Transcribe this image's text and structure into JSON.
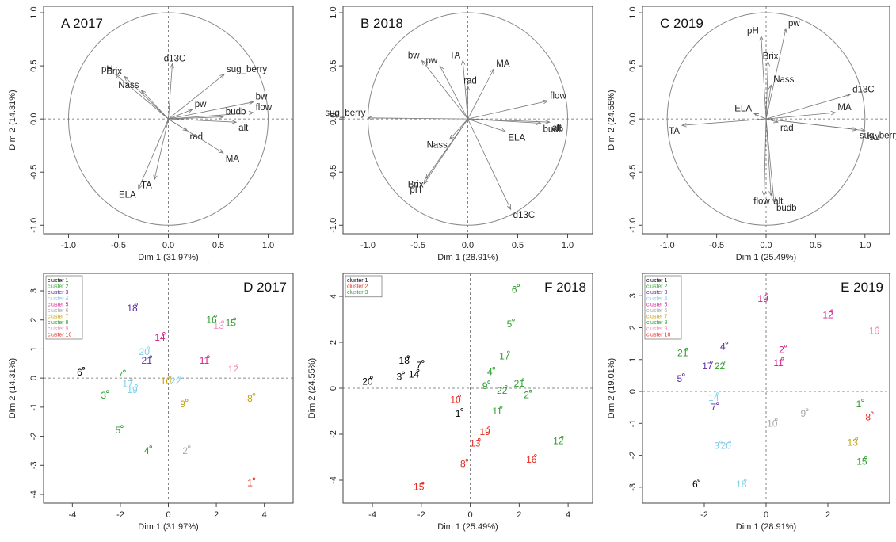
{
  "chart_data": [
    {
      "type": "scatter",
      "subtype": "pca-variable-correlation-circle",
      "title": "A 2017",
      "xlabel": "Dim 1 (31.97%)",
      "ylabel": "Dim 2 (14.31%)",
      "xlim": [
        -1.25,
        1.25
      ],
      "ylim": [
        -1.08,
        1.06
      ],
      "xticks": [
        -1.0,
        -0.5,
        0.0,
        0.5,
        1.0
      ],
      "yticks": [
        -1.0,
        -0.5,
        0.0,
        0.5,
        1.0
      ],
      "xtick_labels": [
        "-1.0",
        "-0.5",
        "0.0",
        "0.5",
        "1.0"
      ],
      "ytick_labels": [
        "-1.0",
        "-0.5",
        "0.0",
        "0.5",
        "1.0"
      ],
      "extra_text": ".",
      "vectors": [
        {
          "label": "pH",
          "x": -0.53,
          "y": 0.42
        },
        {
          "label": "Brix",
          "x": -0.44,
          "y": 0.4
        },
        {
          "label": "Nass",
          "x": -0.27,
          "y": 0.27
        },
        {
          "label": "d13C",
          "x": 0.04,
          "y": 0.52
        },
        {
          "label": "sug_berry",
          "x": 0.56,
          "y": 0.42
        },
        {
          "label": "pw",
          "x": 0.24,
          "y": 0.09
        },
        {
          "label": "bw",
          "x": 0.85,
          "y": 0.16
        },
        {
          "label": "flow",
          "x": 0.85,
          "y": 0.06
        },
        {
          "label": "budb",
          "x": 0.55,
          "y": 0.02
        },
        {
          "label": "alt",
          "x": 0.68,
          "y": -0.03
        },
        {
          "label": "rad",
          "x": 0.19,
          "y": -0.11
        },
        {
          "label": "MA",
          "x": 0.55,
          "y": -0.32
        },
        {
          "label": "TA",
          "x": -0.14,
          "y": -0.57
        },
        {
          "label": "ELA",
          "x": -0.3,
          "y": -0.66
        }
      ]
    },
    {
      "type": "scatter",
      "subtype": "pca-variable-correlation-circle",
      "title": "B 2018",
      "xlabel": "Dim 1 (28.91%)",
      "ylabel": "",
      "xlim": [
        -1.25,
        1.25
      ],
      "ylim": [
        -1.08,
        1.06
      ],
      "xticks": [
        -1.0,
        -0.5,
        0.0,
        0.5,
        1.0
      ],
      "yticks": [
        -1.0,
        -0.5,
        0.0,
        0.5,
        1.0
      ],
      "xtick_labels": [
        "-1.0",
        "-0.5",
        "0.0",
        "0.5",
        "1.0"
      ],
      "ytick_labels": [
        "-1.0",
        "-0.5",
        "0.0",
        "0.5",
        "1.0"
      ],
      "extra_text": "",
      "vectors": [
        {
          "label": "bw",
          "x": -0.46,
          "y": 0.55
        },
        {
          "label": "pw",
          "x": -0.28,
          "y": 0.5
        },
        {
          "label": "TA",
          "x": -0.05,
          "y": 0.55
        },
        {
          "label": "rad",
          "x": 0.0,
          "y": 0.31
        },
        {
          "label": "MA",
          "x": 0.26,
          "y": 0.47
        },
        {
          "label": "flow",
          "x": 0.8,
          "y": 0.17
        },
        {
          "label": "alt",
          "x": 0.82,
          "y": -0.03
        },
        {
          "label": "budb",
          "x": 0.73,
          "y": -0.04
        },
        {
          "label": "ELA",
          "x": 0.38,
          "y": -0.12
        },
        {
          "label": "sug_berry",
          "x": -1.0,
          "y": 0.01
        },
        {
          "label": "Nass",
          "x": -0.18,
          "y": -0.19
        },
        {
          "label": "Brix",
          "x": -0.42,
          "y": -0.56
        },
        {
          "label": "pH",
          "x": -0.44,
          "y": -0.61
        },
        {
          "label": "d13C",
          "x": 0.43,
          "y": -0.85
        }
      ]
    },
    {
      "type": "scatter",
      "subtype": "pca-variable-correlation-circle",
      "title": "C 2019",
      "xlabel": "Dim 1 (25.49%)",
      "ylabel": "Dim 2 (24.55%)",
      "xlim": [
        -1.25,
        1.25
      ],
      "ylim": [
        -1.08,
        1.06
      ],
      "xticks": [
        -1.0,
        -0.5,
        0.0,
        0.5,
        1.0
      ],
      "yticks": [
        -1.0,
        -0.5,
        0.0,
        0.5,
        1.0
      ],
      "xtick_labels": [
        "-1.0",
        "-0.5",
        "0.0",
        "0.5",
        "1.0"
      ],
      "ytick_labels": [
        "-1.0",
        "-0.5",
        "0.0",
        "0.5",
        "1.0"
      ],
      "extra_text": "",
      "vectors": [
        {
          "label": "pH",
          "x": -0.05,
          "y": 0.78
        },
        {
          "label": "pw",
          "x": 0.2,
          "y": 0.85
        },
        {
          "label": "Brix",
          "x": 0.02,
          "y": 0.54
        },
        {
          "label": "Nass",
          "x": 0.05,
          "y": 0.32
        },
        {
          "label": "ELA",
          "x": -0.12,
          "y": 0.05
        },
        {
          "label": "d13C",
          "x": 0.85,
          "y": 0.23
        },
        {
          "label": "MA",
          "x": 0.7,
          "y": 0.06
        },
        {
          "label": "rad",
          "x": 0.12,
          "y": -0.03
        },
        {
          "label": "sug_berry",
          "x": 0.92,
          "y": -0.1
        },
        {
          "label": "bw",
          "x": 1.0,
          "y": -0.11
        },
        {
          "label": "TA",
          "x": -0.85,
          "y": -0.06
        },
        {
          "label": "flow",
          "x": -0.02,
          "y": -0.72
        },
        {
          "label": "alt",
          "x": 0.05,
          "y": -0.72
        },
        {
          "label": "budb",
          "x": 0.08,
          "y": -0.78
        }
      ]
    },
    {
      "type": "scatter",
      "subtype": "pca-individuals",
      "title": "D 2017",
      "xlabel": "Dim 1 (31.97%)",
      "ylabel": "Dim 2 (14.31%)",
      "xlim": [
        -5.2,
        5.2
      ],
      "ylim": [
        -4.3,
        3.6
      ],
      "xticks": [
        -4,
        -2,
        0,
        2,
        4
      ],
      "yticks": [
        -4,
        -3,
        -2,
        -1,
        0,
        1,
        2,
        3
      ],
      "legend": [
        {
          "name": "cluster 1",
          "color": "#000000"
        },
        {
          "name": "cluster 2",
          "color": "#2e9e2e"
        },
        {
          "name": "cluster 3",
          "color": "#5a2da6"
        },
        {
          "name": "cluster 4",
          "color": "#7ecdea"
        },
        {
          "name": "cluster 5",
          "color": "#d61b8c"
        },
        {
          "name": "cluster 6",
          "color": "#a8a8a8"
        },
        {
          "name": "cluster 7",
          "color": "#c2a010"
        },
        {
          "name": "cluster 8",
          "color": "#2e9e2e"
        },
        {
          "name": "cluster 9",
          "color": "#f08fba"
        },
        {
          "name": "cluster 10",
          "color": "#e8261e"
        }
      ],
      "points": [
        {
          "label": "18",
          "x": -1.5,
          "y": 2.4,
          "cluster": 3
        },
        {
          "label": "16",
          "x": 1.8,
          "y": 2.0,
          "cluster": 8
        },
        {
          "label": "15",
          "x": 2.6,
          "y": 1.9,
          "cluster": 8
        },
        {
          "label": "13",
          "x": 2.1,
          "y": 1.8,
          "cluster": 9
        },
        {
          "label": "14",
          "x": -0.35,
          "y": 1.4,
          "cluster": 5
        },
        {
          "label": "20",
          "x": -1.0,
          "y": 0.9,
          "cluster": 4
        },
        {
          "label": "21",
          "x": -0.9,
          "y": 0.6,
          "cluster": 3
        },
        {
          "label": "11",
          "x": 1.5,
          "y": 0.6,
          "cluster": 5
        },
        {
          "label": "12",
          "x": 2.7,
          "y": 0.3,
          "cluster": 9
        },
        {
          "label": "6",
          "x": -3.7,
          "y": 0.2,
          "cluster": 1
        },
        {
          "label": "7",
          "x": -2.0,
          "y": 0.1,
          "cluster": 2
        },
        {
          "label": "22",
          "x": 0.3,
          "y": -0.1,
          "cluster": 4
        },
        {
          "label": "10",
          "x": -0.1,
          "y": -0.1,
          "cluster": 7
        },
        {
          "label": "19",
          "x": -1.5,
          "y": -0.4,
          "cluster": 4
        },
        {
          "label": "17",
          "x": -1.7,
          "y": -0.2,
          "cluster": 4
        },
        {
          "label": "3",
          "x": -2.7,
          "y": -0.6,
          "cluster": 2
        },
        {
          "label": "8",
          "x": 3.4,
          "y": -0.7,
          "cluster": 7
        },
        {
          "label": "9",
          "x": 0.6,
          "y": -0.9,
          "cluster": 7
        },
        {
          "label": "5",
          "x": -2.1,
          "y": -1.8,
          "cluster": 2
        },
        {
          "label": "4",
          "x": -0.9,
          "y": -2.5,
          "cluster": 8
        },
        {
          "label": "2",
          "x": 0.7,
          "y": -2.5,
          "cluster": 6
        },
        {
          "label": "1",
          "x": 3.4,
          "y": -3.6,
          "cluster": 10
        }
      ]
    },
    {
      "type": "scatter",
      "subtype": "pca-individuals",
      "title": "F 2018",
      "xlabel": "Dim 1 (25.49%)",
      "ylabel": "Dim 2 (24.55%)",
      "xlim": [
        -5.2,
        5.0
      ],
      "ylim": [
        -5.0,
        5.0
      ],
      "xticks": [
        -4,
        -2,
        0,
        2,
        4
      ],
      "yticks": [
        -4,
        -2,
        0,
        2,
        4
      ],
      "legend": [
        {
          "name": "cluster 1",
          "color": "#000000"
        },
        {
          "name": "cluster 2",
          "color": "#e8261e"
        },
        {
          "name": "cluster 3",
          "color": "#2e9e2e"
        }
      ],
      "points": [
        {
          "label": "6",
          "x": 1.8,
          "y": 4.3,
          "cluster": 3
        },
        {
          "label": "5",
          "x": 1.6,
          "y": 2.8,
          "cluster": 3
        },
        {
          "label": "17",
          "x": 1.4,
          "y": 1.4,
          "cluster": 3
        },
        {
          "label": "18",
          "x": -2.7,
          "y": 1.2,
          "cluster": 1
        },
        {
          "label": "7",
          "x": -2.1,
          "y": 1.0,
          "cluster": 1
        },
        {
          "label": "3",
          "x": -2.9,
          "y": 0.5,
          "cluster": 1
        },
        {
          "label": "14",
          "x": -2.3,
          "y": 0.6,
          "cluster": 1
        },
        {
          "label": "20",
          "x": -4.2,
          "y": 0.3,
          "cluster": 1
        },
        {
          "label": "4",
          "x": 0.8,
          "y": 0.7,
          "cluster": 3
        },
        {
          "label": "9",
          "x": 0.6,
          "y": 0.1,
          "cluster": 3
        },
        {
          "label": "22",
          "x": 1.3,
          "y": -0.1,
          "cluster": 3
        },
        {
          "label": "21",
          "x": 2.0,
          "y": 0.2,
          "cluster": 3
        },
        {
          "label": "2",
          "x": 2.3,
          "y": -0.3,
          "cluster": 3
        },
        {
          "label": "10",
          "x": -0.6,
          "y": -0.5,
          "cluster": 2
        },
        {
          "label": "1",
          "x": -0.5,
          "y": -1.1,
          "cluster": 1
        },
        {
          "label": "11",
          "x": 1.1,
          "y": -1.0,
          "cluster": 3
        },
        {
          "label": "19",
          "x": 0.6,
          "y": -1.9,
          "cluster": 2
        },
        {
          "label": "13",
          "x": 0.2,
          "y": -2.4,
          "cluster": 2
        },
        {
          "label": "12",
          "x": 3.6,
          "y": -2.3,
          "cluster": 3
        },
        {
          "label": "16",
          "x": 2.5,
          "y": -3.1,
          "cluster": 2
        },
        {
          "label": "8",
          "x": -0.3,
          "y": -3.3,
          "cluster": 2
        },
        {
          "label": "15",
          "x": -2.1,
          "y": -4.3,
          "cluster": 2
        }
      ]
    },
    {
      "type": "scatter",
      "subtype": "pca-individuals",
      "title": "E 2019",
      "xlabel": "Dim 1 (28.91%)",
      "ylabel": "Dim 2 (19.01%)",
      "xlim": [
        -4.0,
        4.0
      ],
      "ylim": [
        -3.5,
        3.7
      ],
      "xticks": [
        -2,
        0,
        2
      ],
      "yticks": [
        -3,
        -2,
        -1,
        0,
        1,
        2,
        3
      ],
      "legend": [
        {
          "name": "cluster 1",
          "color": "#000000"
        },
        {
          "name": "cluster 2",
          "color": "#2e9e2e"
        },
        {
          "name": "cluster 3",
          "color": "#5a2da6"
        },
        {
          "name": "cluster 4",
          "color": "#7ecdea"
        },
        {
          "name": "cluster 5",
          "color": "#d61b8c"
        },
        {
          "name": "cluster 6",
          "color": "#a8a8a8"
        },
        {
          "name": "cluster 7",
          "color": "#c2a010"
        },
        {
          "name": "cluster 8",
          "color": "#2e9e2e"
        },
        {
          "name": "cluster 9",
          "color": "#f08fba"
        },
        {
          "name": "cluster 10",
          "color": "#e8261e"
        }
      ],
      "points": [
        {
          "label": "19",
          "x": -0.1,
          "y": 2.9,
          "cluster": 5
        },
        {
          "label": "12",
          "x": 2.0,
          "y": 2.4,
          "cluster": 5
        },
        {
          "label": "16",
          "x": 3.5,
          "y": 1.9,
          "cluster": 9
        },
        {
          "label": "4",
          "x": -1.4,
          "y": 1.4,
          "cluster": 3
        },
        {
          "label": "21",
          "x": -2.7,
          "y": 1.2,
          "cluster": 2
        },
        {
          "label": "2",
          "x": 0.5,
          "y": 1.3,
          "cluster": 5
        },
        {
          "label": "17",
          "x": -1.9,
          "y": 0.8,
          "cluster": 3
        },
        {
          "label": "22",
          "x": -1.5,
          "y": 0.8,
          "cluster": 2
        },
        {
          "label": "11",
          "x": 0.4,
          "y": 0.9,
          "cluster": 5
        },
        {
          "label": "5",
          "x": -2.8,
          "y": 0.4,
          "cluster": 3
        },
        {
          "label": "14",
          "x": -1.7,
          "y": -0.2,
          "cluster": 4
        },
        {
          "label": "7",
          "x": -1.7,
          "y": -0.5,
          "cluster": 3
        },
        {
          "label": "9",
          "x": 1.2,
          "y": -0.7,
          "cluster": 6
        },
        {
          "label": "1",
          "x": 3.0,
          "y": -0.4,
          "cluster": 8
        },
        {
          "label": "8",
          "x": 3.3,
          "y": -0.8,
          "cluster": 10
        },
        {
          "label": "10",
          "x": 0.2,
          "y": -1.0,
          "cluster": 6
        },
        {
          "label": "3",
          "x": -1.6,
          "y": -1.7,
          "cluster": 4
        },
        {
          "label": "20",
          "x": -1.3,
          "y": -1.7,
          "cluster": 4
        },
        {
          "label": "13",
          "x": 2.8,
          "y": -1.6,
          "cluster": 7
        },
        {
          "label": "15",
          "x": 3.1,
          "y": -2.2,
          "cluster": 8
        },
        {
          "label": "6",
          "x": -2.3,
          "y": -2.9,
          "cluster": 1
        },
        {
          "label": "18",
          "x": -0.8,
          "y": -2.9,
          "cluster": 4
        }
      ]
    }
  ]
}
